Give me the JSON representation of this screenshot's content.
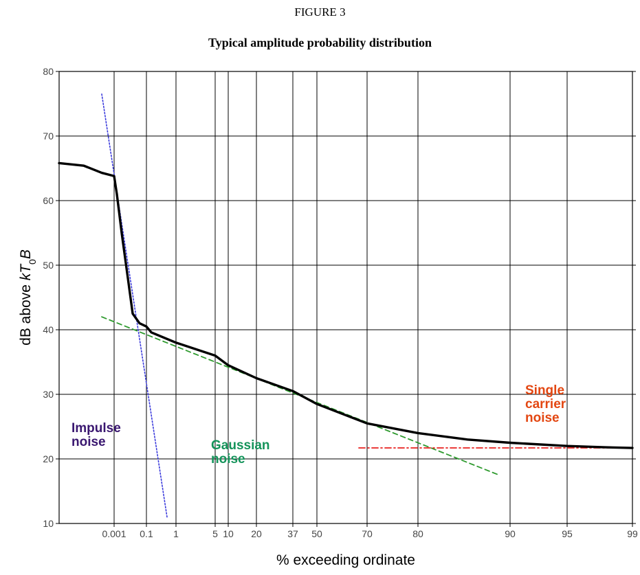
{
  "figure_label": "FIGURE 3",
  "chart_data": {
    "type": "line",
    "title": "Typical amplitude probability distribution",
    "xlabel": "% exceeding ordinate",
    "ylabel": "dB above kT0B",
    "ylim": [
      10,
      80
    ],
    "yticks": [
      10,
      20,
      30,
      40,
      50,
      60,
      70,
      80
    ],
    "x_scale": "probability (Rayleigh-type)",
    "x_tick_labels": [
      "0.001",
      "0.1",
      "1",
      "5",
      "10",
      "20",
      "37",
      "50",
      "70",
      "80",
      "90",
      "95",
      "99"
    ],
    "grid": true,
    "series": [
      {
        "name": "",
        "style": "solid",
        "color": "#000000",
        "points": [
          [
            "<0.0001",
            65.8
          ],
          [
            "0.0003",
            65.4
          ],
          [
            "0.0007",
            64.3
          ],
          [
            "0.001",
            63.8
          ],
          [
            "0.01",
            61
          ],
          [
            "0.02",
            55
          ],
          [
            "0.04",
            48
          ],
          [
            "0.06",
            42.5
          ],
          [
            "0.08",
            41
          ],
          [
            "0.1",
            40.5
          ],
          [
            "0.15",
            39.6
          ],
          [
            "1",
            38
          ],
          [
            "5",
            36
          ],
          [
            "10",
            34.5
          ],
          [
            "20",
            32.5
          ],
          [
            "37",
            30.5
          ],
          [
            "50",
            28.5
          ],
          [
            "70",
            25.5
          ],
          [
            "80",
            24
          ],
          [
            "87",
            23
          ],
          [
            "90",
            22.5
          ],
          [
            "95",
            22
          ],
          [
            "98",
            21.8
          ],
          [
            "99",
            21.7
          ]
        ]
      },
      {
        "name": "Impulse noise",
        "style": "dotted",
        "color": "#3b3bdc",
        "points": [
          [
            "0.0007",
            76.5
          ],
          [
            "0.6",
            11
          ]
        ]
      },
      {
        "name": "Gaussian noise",
        "style": "dashed",
        "color": "#2e9a2e",
        "points": [
          [
            "0.0007",
            42
          ],
          [
            "93",
            17.5
          ]
        ]
      },
      {
        "name": "Single carrier noise",
        "style": "dash-dot",
        "color": "#e8201e",
        "points": [
          [
            "67",
            21.7
          ],
          [
            "99",
            21.7
          ]
        ]
      }
    ],
    "annotations": [
      {
        "text_lines": [
          "Impulse",
          "noise"
        ],
        "color": "#3a1770"
      },
      {
        "text_lines": [
          "Gaussian",
          "noise"
        ],
        "color": "#14935a"
      },
      {
        "text_lines": [
          "Single",
          "carrier",
          "noise"
        ],
        "color": "#e34712"
      }
    ]
  }
}
